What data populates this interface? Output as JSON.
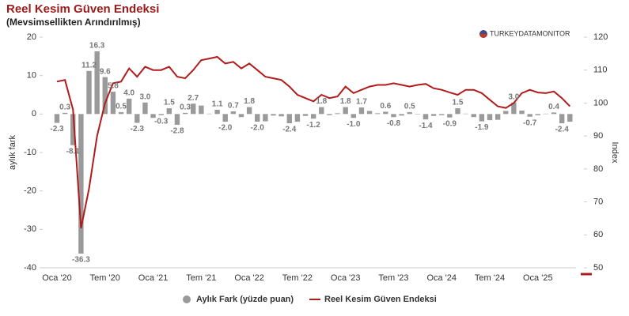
{
  "chart_data": {
    "type": "bar_line",
    "title": "Reel Kesim Güven Endeksi",
    "subtitle": "(Mevsimsellikten Arındırılmış)",
    "source": "TURKEYDATAMONITOR",
    "ylabel": "aylık fark",
    "y2label": "Index",
    "categories": [
      "Oca '20",
      null,
      null,
      null,
      null,
      null,
      "Tem '20",
      null,
      null,
      null,
      null,
      null,
      "Oca '21",
      null,
      null,
      null,
      null,
      null,
      "Tem '21",
      null,
      null,
      null,
      null,
      null,
      "Oca '22",
      null,
      null,
      null,
      null,
      null,
      "Tem '22",
      null,
      null,
      null,
      null,
      null,
      "Oca '23",
      null,
      null,
      null,
      null,
      null,
      "Tem '23",
      null,
      null,
      null,
      null,
      null,
      "Oca '24",
      null,
      null,
      null,
      null,
      null,
      "Tem '24",
      null,
      null,
      null,
      null,
      null,
      "Oca '25",
      null,
      null,
      null,
      null
    ],
    "series": [
      {
        "name": "Aylık Fark (yüzde puan)",
        "type": "bar",
        "color": "#9a9a9a",
        "axis": "y",
        "values": [
          -2.3,
          0.3,
          -8.1,
          -36.3,
          11.2,
          16.3,
          9.6,
          5.8,
          0.5,
          4.0,
          -2.3,
          3.0,
          -1.0,
          -0.3,
          1.5,
          -2.8,
          0.3,
          2.7,
          2.2,
          0.1,
          1.1,
          -2.0,
          0.7,
          -0.8,
          1.8,
          -2.0,
          -1.9,
          -0.4,
          -0.6,
          -2.4,
          -2.0,
          -0.5,
          -1.2,
          1.8,
          -0.3,
          0.2,
          1.8,
          -1.0,
          1.7,
          0.8,
          0.2,
          0.6,
          -0.8,
          -0.4,
          0.5,
          -0.1,
          -1.4,
          -0.5,
          -0.3,
          -0.9,
          1.5,
          0.1,
          -0.8,
          -1.9,
          -1.6,
          -1.5,
          0.8,
          3.0,
          0.9,
          -0.7,
          -0.3,
          0.1,
          0.4,
          -2.4,
          -2.0
        ],
        "value_labels": [
          "-2.3",
          "0.3",
          "-8.1",
          "-36.3",
          "11.2",
          "16.3",
          "9.6",
          "5.8",
          "0.5",
          "4.0",
          "-2.3",
          "3.0",
          null,
          "-0.3",
          "1.5",
          "-2.8",
          "0.3",
          "2.7",
          null,
          null,
          "1.1",
          "-2.0",
          "0.7",
          null,
          "1.8",
          "-2.0",
          null,
          null,
          null,
          "-2.4",
          null,
          null,
          "-1.2",
          "1.8",
          null,
          null,
          "1.8",
          "-1.0",
          "1.7",
          null,
          null,
          "0.6",
          "-0.8",
          null,
          "0.5",
          null,
          "-1.4",
          null,
          null,
          "-0.9",
          "1.5",
          null,
          null,
          "-1.9",
          null,
          null,
          null,
          "3.0",
          null,
          "-0.7",
          null,
          null,
          "0.4",
          "-2.4",
          null
        ]
      },
      {
        "name": "Reel Kesim Güven Endeksi",
        "type": "line",
        "color": "#b01c1c",
        "axis": "y2",
        "values": [
          106.5,
          107,
          98,
          62,
          74,
          90,
          100,
          106,
          106.5,
          110.5,
          108,
          111,
          110,
          110,
          111,
          108,
          107.5,
          110,
          113,
          113.5,
          114,
          112,
          112.5,
          110.5,
          112,
          110,
          108,
          107.5,
          107,
          105,
          102.5,
          101.5,
          100.5,
          102.5,
          101.5,
          102,
          105,
          103,
          104,
          105,
          105.5,
          105.5,
          106,
          105.5,
          105,
          105.5,
          105.8,
          104.5,
          104,
          103.2,
          102.5,
          104,
          104,
          103,
          101,
          99,
          98.5,
          100,
          103,
          104,
          103.2,
          103,
          103.5,
          101.5,
          99
        ]
      }
    ],
    "ylim": [
      -40,
      20
    ],
    "yticks": [
      -40,
      -30,
      -20,
      -10,
      0,
      10,
      20
    ],
    "y2lim": [
      50,
      120
    ],
    "y2ticks": [
      50,
      60,
      70,
      80,
      90,
      100,
      110,
      120
    ],
    "legend": "bottom"
  }
}
